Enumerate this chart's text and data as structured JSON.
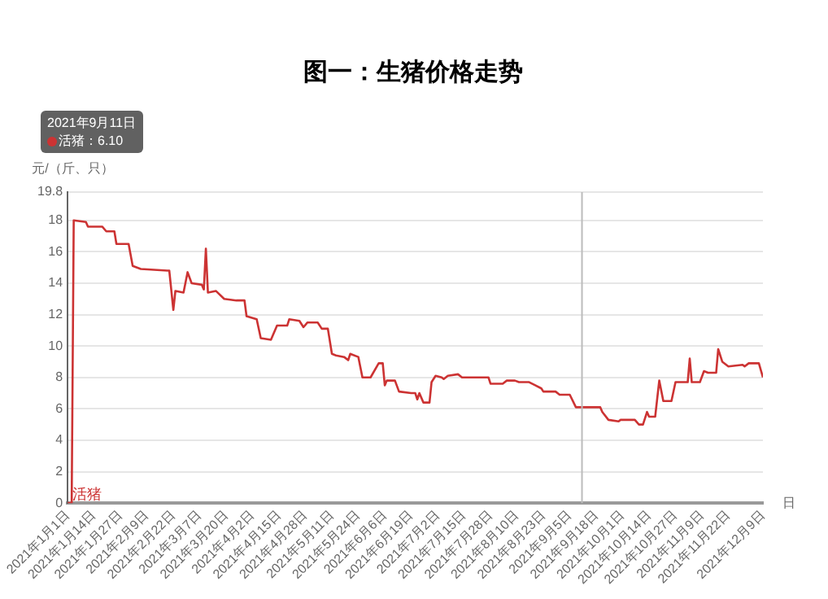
{
  "chart_data": {
    "type": "line",
    "title": "图一：生猪价格走势",
    "ylabel": "元/（斤、只）",
    "xlabel": "日",
    "xlim": [
      "2021-01-01",
      "2021-12-09"
    ],
    "xticks": [
      {
        "value": "2021-01-01",
        "label": "2021年1月1日"
      },
      {
        "value": "2021-01-14",
        "label": "2021年1月14日"
      },
      {
        "value": "2021-01-27",
        "label": "2021年1月27日"
      },
      {
        "value": "2021-02-09",
        "label": "2021年2月9日"
      },
      {
        "value": "2021-02-22",
        "label": "2021年2月22日"
      },
      {
        "value": "2021-03-07",
        "label": "2021年3月7日"
      },
      {
        "value": "2021-03-20",
        "label": "2021年3月20日"
      },
      {
        "value": "2021-04-02",
        "label": "2021年4月2日"
      },
      {
        "value": "2021-04-15",
        "label": "2021年4月15日"
      },
      {
        "value": "2021-04-28",
        "label": "2021年4月28日"
      },
      {
        "value": "2021-05-11",
        "label": "2021年5月11日"
      },
      {
        "value": "2021-05-24",
        "label": "2021年5月24日"
      },
      {
        "value": "2021-06-06",
        "label": "2021年6月6日"
      },
      {
        "value": "2021-06-19",
        "label": "2021年6月19日"
      },
      {
        "value": "2021-07-02",
        "label": "2021年7月2日"
      },
      {
        "value": "2021-07-15",
        "label": "2021年7月15日"
      },
      {
        "value": "2021-07-28",
        "label": "2021年7月28日"
      },
      {
        "value": "2021-08-10",
        "label": "2021年8月10日"
      },
      {
        "value": "2021-08-23",
        "label": "2021年8月23日"
      },
      {
        "value": "2021-09-05",
        "label": "2021年9月5日"
      },
      {
        "value": "2021-09-18",
        "label": "2021年9月18日"
      },
      {
        "value": "2021-10-01",
        "label": "2021年10月1日"
      },
      {
        "value": "2021-10-14",
        "label": "2021年10月14日"
      },
      {
        "value": "2021-10-27",
        "label": "2021年10月27日"
      },
      {
        "value": "2021-11-09",
        "label": "2021年11月9日"
      },
      {
        "value": "2021-11-22",
        "label": "2021年11月22日"
      },
      {
        "value": "2021-12-09",
        "label": "2021年12月9日"
      }
    ],
    "ylim": [
      0,
      19.8
    ],
    "yticks": [
      0,
      2,
      4,
      6,
      8,
      10,
      12,
      14,
      16,
      18,
      19.8
    ],
    "grid": "y",
    "legend": false,
    "marker": "none",
    "line_style": "solid",
    "x": [
      "2021-01-01",
      "2021-01-03",
      "2021-01-04",
      "2021-01-10",
      "2021-01-11",
      "2021-01-18",
      "2021-01-20",
      "2021-01-24",
      "2021-01-25",
      "2021-01-31",
      "2021-02-02",
      "2021-02-06",
      "2021-02-19",
      "2021-02-20",
      "2021-02-22",
      "2021-02-23",
      "2021-02-27",
      "2021-03-01",
      "2021-03-03",
      "2021-03-08",
      "2021-03-09",
      "2021-03-10",
      "2021-03-11",
      "2021-03-15",
      "2021-03-19",
      "2021-03-25",
      "2021-03-29",
      "2021-03-30",
      "2021-04-04",
      "2021-04-06",
      "2021-04-11",
      "2021-04-14",
      "2021-04-19",
      "2021-04-20",
      "2021-04-25",
      "2021-04-27",
      "2021-04-29",
      "2021-05-04",
      "2021-05-06",
      "2021-05-09",
      "2021-05-11",
      "2021-05-13",
      "2021-05-17",
      "2021-05-19",
      "2021-05-20",
      "2021-05-24",
      "2021-05-26",
      "2021-05-30",
      "2021-06-03",
      "2021-06-05",
      "2021-06-06",
      "2021-06-07",
      "2021-06-11",
      "2021-06-13",
      "2021-06-19",
      "2021-06-21",
      "2021-06-22",
      "2021-06-23",
      "2021-06-25",
      "2021-06-28",
      "2021-06-29",
      "2021-07-01",
      "2021-07-04",
      "2021-07-05",
      "2021-07-07",
      "2021-07-12",
      "2021-07-14",
      "2021-07-27",
      "2021-07-28",
      "2021-08-03",
      "2021-08-05",
      "2021-08-09",
      "2021-08-11",
      "2021-08-16",
      "2021-08-19",
      "2021-08-22",
      "2021-08-23",
      "2021-08-29",
      "2021-08-31",
      "2021-09-05",
      "2021-09-08",
      "2021-09-11",
      "2021-09-20",
      "2021-09-21",
      "2021-09-24",
      "2021-09-29",
      "2021-09-30",
      "2021-10-07",
      "2021-10-09",
      "2021-10-11",
      "2021-10-13",
      "2021-10-14",
      "2021-10-17",
      "2021-10-19",
      "2021-10-21",
      "2021-10-25",
      "2021-10-27",
      "2021-11-02",
      "2021-11-03",
      "2021-11-04",
      "2021-11-08",
      "2021-11-10",
      "2021-11-12",
      "2021-11-16",
      "2021-11-17",
      "2021-11-19",
      "2021-11-22",
      "2021-11-29",
      "2021-11-30",
      "2021-12-02",
      "2021-12-07",
      "2021-12-09"
    ],
    "series": [
      {
        "name": "活猪",
        "color": "#cc3333",
        "values": [
          0,
          0,
          18.0,
          17.9,
          17.6,
          17.6,
          17.3,
          17.3,
          16.5,
          16.5,
          15.1,
          14.9,
          14.8,
          14.8,
          12.3,
          13.5,
          13.4,
          14.7,
          14.0,
          13.9,
          13.6,
          16.2,
          13.4,
          13.5,
          13.0,
          12.9,
          12.9,
          11.9,
          11.7,
          10.5,
          10.4,
          11.3,
          11.3,
          11.7,
          11.6,
          11.2,
          11.5,
          11.5,
          11.1,
          11.1,
          9.5,
          9.4,
          9.3,
          9.1,
          9.5,
          9.3,
          8.0,
          8.0,
          8.9,
          8.9,
          7.5,
          7.8,
          7.8,
          7.1,
          7.0,
          7.0,
          6.6,
          7.0,
          6.4,
          6.4,
          7.7,
          8.1,
          8.0,
          7.9,
          8.1,
          8.2,
          8.0,
          8.0,
          7.6,
          7.6,
          7.8,
          7.8,
          7.7,
          7.7,
          7.5,
          7.3,
          7.1,
          7.1,
          6.9,
          6.9,
          6.1,
          6.1,
          6.1,
          5.8,
          5.3,
          5.2,
          5.3,
          5.3,
          5.0,
          5.0,
          5.8,
          5.5,
          5.5,
          7.8,
          6.5,
          6.5,
          7.7,
          7.7,
          9.2,
          7.7,
          7.7,
          8.4,
          8.3,
          8.3,
          9.8,
          9.0,
          8.7,
          8.8,
          8.7,
          8.9,
          8.9,
          8.0
        ]
      }
    ],
    "ref_lines": [
      {
        "axis": "x",
        "value": "2021-09-11",
        "color": "#bbbbbb"
      }
    ],
    "annotations": [
      "2021年9月11日",
      "活猪：6.10"
    ]
  }
}
